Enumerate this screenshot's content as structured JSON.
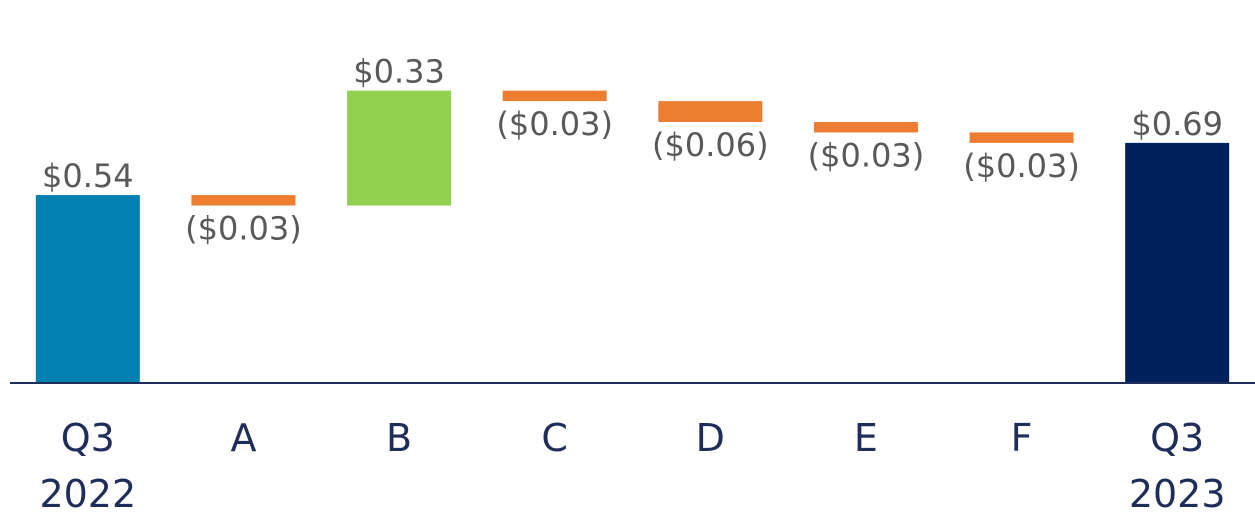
{
  "chart_data": {
    "type": "waterfall",
    "categories": [
      "Q3 2022",
      "A",
      "B",
      "C",
      "D",
      "E",
      "F",
      "Q3 2023"
    ],
    "values": [
      0.54,
      -0.03,
      0.33,
      -0.03,
      -0.06,
      -0.03,
      -0.03,
      0.69
    ],
    "value_labels": [
      "$0.54",
      "($0.03)",
      "$0.33",
      "($0.03)",
      "($0.06)",
      "($0.03)",
      "($0.03)",
      "$0.69"
    ],
    "colors": [
      "#0080b0",
      "#ed7d31",
      "#92d050",
      "#ed7d31",
      "#ed7d31",
      "#ed7d31",
      "#ed7d31",
      "#00205b"
    ],
    "ylim": [
      0,
      1
    ]
  }
}
